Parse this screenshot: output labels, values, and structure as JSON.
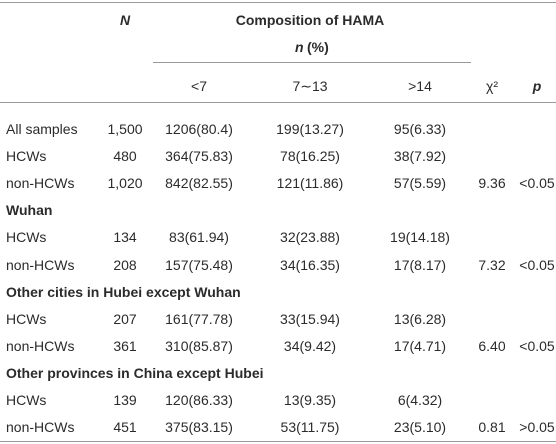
{
  "table": {
    "header": {
      "n_label": "N",
      "composition": "Composition of HAMA",
      "n_pct": {
        "n": "n",
        "rest": "(%)"
      },
      "columns": [
        "<7",
        "7∼13",
        ">14",
        "χ²",
        "p"
      ]
    },
    "groups": [
      {
        "rows": [
          {
            "label": "All samples",
            "n": "1,500",
            "lt7": "1206(80.4)",
            "mid": "199(13.27)",
            "gt14": "95(6.33)"
          },
          {
            "label": "HCWs",
            "n": "480",
            "lt7": "364(75.83)",
            "mid": "78(16.25)",
            "gt14": "38(7.92)"
          },
          {
            "label": "non-HCWs",
            "n": "1,020",
            "lt7": "842(82.55)",
            "mid": "121(11.86)",
            "gt14": "57(5.59)",
            "chi2": "9.36",
            "p": "<0.05"
          }
        ]
      },
      {
        "title": "Wuhan",
        "rows": [
          {
            "label": "HCWs",
            "n": "134",
            "lt7": "83(61.94)",
            "mid": "32(23.88)",
            "gt14": "19(14.18)"
          },
          {
            "label": "non-HCWs",
            "n": "208",
            "lt7": "157(75.48)",
            "mid": "34(16.35)",
            "gt14": "17(8.17)",
            "chi2": "7.32",
            "p": "<0.05"
          }
        ]
      },
      {
        "title": "Other cities in Hubei except Wuhan",
        "rows": [
          {
            "label": "HCWs",
            "n": "207",
            "lt7": "161(77.78)",
            "mid": "33(15.94)",
            "gt14": "13(6.28)"
          },
          {
            "label": "non-HCWs",
            "n": "361",
            "lt7": "310(85.87)",
            "mid": "34(9.42)",
            "gt14": "17(4.71)",
            "chi2": "6.40",
            "p": "<0.05"
          }
        ]
      },
      {
        "title": "Other provinces in China except Hubei",
        "rows": [
          {
            "label": "HCWs",
            "n": "139",
            "lt7": "120(86.33)",
            "mid": "13(9.35)",
            "gt14": "6(4.32)"
          },
          {
            "label": "non-HCWs",
            "n": "451",
            "lt7": "375(83.15)",
            "mid": "53(11.75)",
            "gt14": "23(5.10)",
            "chi2": "0.81",
            "p": ">0.05"
          }
        ]
      }
    ]
  }
}
